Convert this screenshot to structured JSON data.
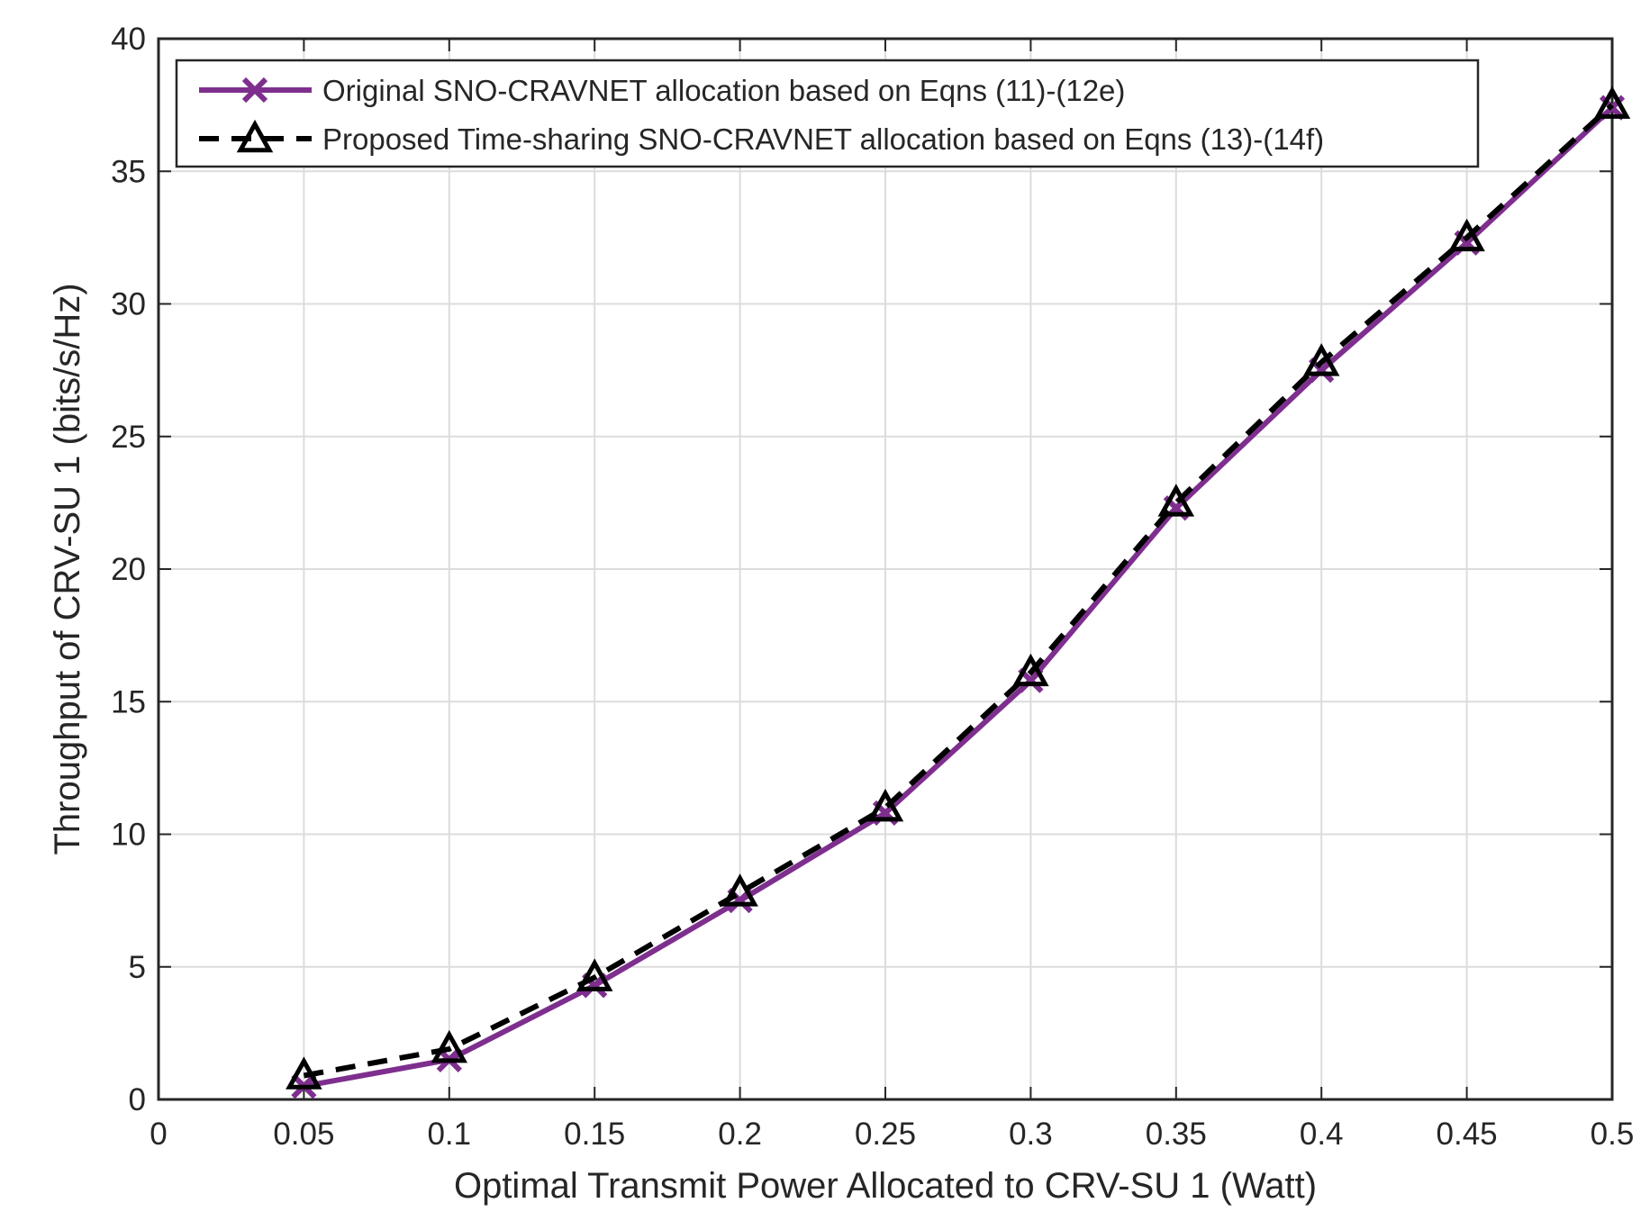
{
  "chart_data": {
    "type": "line",
    "x_label": "Optimal Transmit Power Allocated to CRV-SU 1 (Watt)",
    "y_label": "Throughput of CRV-SU 1 (bits/s/Hz)",
    "x": [
      0.05,
      0.1,
      0.15,
      0.2,
      0.25,
      0.3,
      0.35,
      0.4,
      0.45,
      0.5
    ],
    "series": [
      {
        "name": "Original SNO-CRAVNET allocation based on Eqns (11)-(12e)",
        "color": "#7e2f8e",
        "marker": "x",
        "line_style": "solid",
        "values": [
          0.5,
          1.5,
          4.3,
          7.5,
          10.8,
          15.8,
          22.3,
          27.5,
          32.3,
          37.4
        ]
      },
      {
        "name": "Proposed Time-sharing SNO-CRAVNET allocation based on Eqns (13)-(14f)",
        "color": "#000000",
        "marker": "triangle",
        "line_style": "dashed",
        "values": [
          0.9,
          1.9,
          4.6,
          7.8,
          11.0,
          16.1,
          22.5,
          27.8,
          32.5,
          37.5
        ]
      }
    ],
    "xlim": [
      0,
      0.5
    ],
    "xticks": [
      0,
      0.05,
      0.1,
      0.15,
      0.2,
      0.25,
      0.3,
      0.35,
      0.4,
      0.45,
      0.5
    ],
    "ylim": [
      0,
      40
    ],
    "yticks": [
      0,
      5,
      10,
      15,
      20,
      25,
      30,
      35,
      40
    ],
    "grid": true,
    "legend_position": "top-left"
  }
}
